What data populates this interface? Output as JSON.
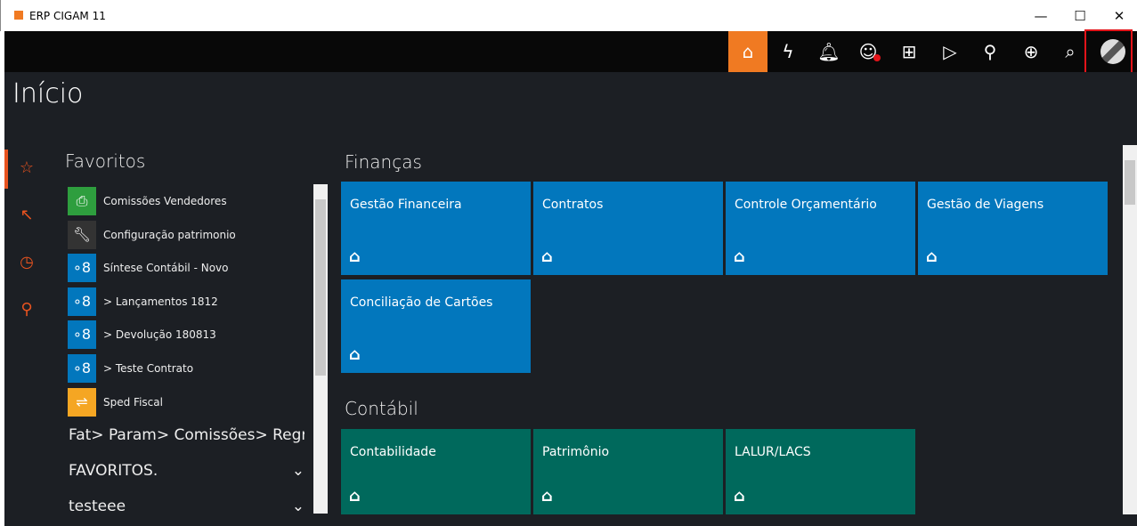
{
  "window": {
    "title": "ERP CIGAM 11",
    "minimize": "—",
    "maximize": "☐",
    "close": "✕"
  },
  "toolbar": {
    "icons": [
      "home-logo-icon",
      "lightning-icon",
      "bell-icon",
      "support-icon",
      "apps-grid-icon",
      "play-chat-icon",
      "presenter-icon",
      "globe-monitor-icon",
      "search-icon",
      "user-avatar-icon"
    ],
    "notification_color": "#e3141a",
    "accent": "#f07a22"
  },
  "page": {
    "title": "Início"
  },
  "side_nav": [
    "star-icon",
    "cursor-plus-icon",
    "clock-icon",
    "pin-icon"
  ],
  "favorites": {
    "title": "Favoritos",
    "items": [
      {
        "label": "Comissões Vendedores",
        "icon": "printer-icon",
        "color": "#2e9e3e"
      },
      {
        "label": "Configuração patrimonio",
        "icon": "wrench-icon",
        "color": "#333333"
      },
      {
        "label": "Síntese Contábil - Novo",
        "icon": "graph-icon",
        "color": "#0277bd"
      },
      {
        "label": "> Lançamentos 1812",
        "icon": "graph-icon",
        "color": "#0277bd"
      },
      {
        "label": "> Devolução 180813",
        "icon": "graph-icon",
        "color": "#0277bd"
      },
      {
        "label": "> Teste Contrato",
        "icon": "graph-icon",
        "color": "#0277bd"
      },
      {
        "label": "Sped Fiscal",
        "icon": "swap-icon",
        "color": "#f5a623"
      }
    ],
    "groups": [
      "Fat> Param> Comissões> Regras",
      "FAVORITOS.",
      "testeee"
    ]
  },
  "sections": [
    {
      "title": "Finanças",
      "color": "#0277bd",
      "tiles": [
        "Gestão Financeira",
        "Contratos",
        "Controle Orçamentário",
        "Gestão de Viagens",
        "Conciliação de Cartões"
      ]
    },
    {
      "title": "Contábil",
      "color": "#00695c",
      "tiles": [
        "Contabilidade",
        "Patrimônio",
        "LALUR/LACS"
      ]
    }
  ]
}
